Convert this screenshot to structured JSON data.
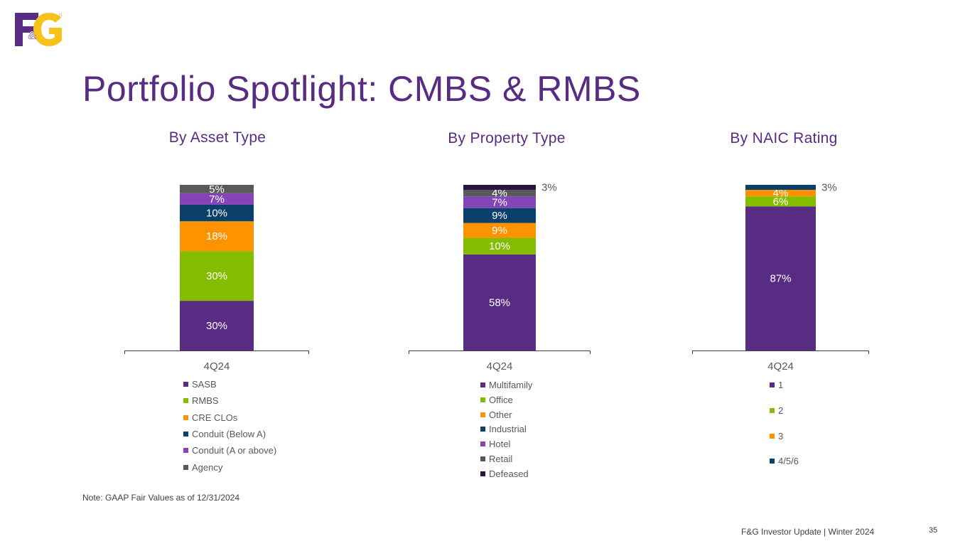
{
  "title": "Portfolio Spotlight: CMBS & RMBS",
  "logo": {
    "text": "F&G",
    "colors": {
      "purple": "#582c83",
      "yellow": "#f7c31a"
    }
  },
  "chart_data": [
    {
      "type": "bar",
      "stacked": true,
      "title": "By Asset Type",
      "categories": [
        "4Q24"
      ],
      "series": [
        {
          "name": "SASB",
          "values": [
            30
          ],
          "label": "30%",
          "color": "#582c83",
          "label_color": "#ffffff"
        },
        {
          "name": "RMBS",
          "values": [
            30
          ],
          "label": "30%",
          "color": "#84bd00",
          "label_color": "#ffffff"
        },
        {
          "name": "CRE CLOs",
          "values": [
            18
          ],
          "label": "18%",
          "color": "#ff9200",
          "label_color": "#ffffff"
        },
        {
          "name": "Conduit (Below A)",
          "values": [
            10
          ],
          "label": "10%",
          "color": "#0a4069",
          "label_color": "#ffffff"
        },
        {
          "name": "Conduit (A or above)",
          "values": [
            7
          ],
          "label": "7%",
          "color": "#8545b6",
          "label_color": "#ffffff"
        },
        {
          "name": "Agency",
          "values": [
            5
          ],
          "label": "5%",
          "color": "#595959",
          "label_color": "#ffffff"
        }
      ],
      "ylim": [
        0,
        100
      ],
      "legend": "bottom"
    },
    {
      "type": "bar",
      "stacked": true,
      "title": "By Property Type",
      "categories": [
        "4Q24"
      ],
      "series": [
        {
          "name": "Multifamily",
          "values": [
            58
          ],
          "label": "58%",
          "color": "#582c83",
          "label_color": "#ffffff"
        },
        {
          "name": "Office",
          "values": [
            10
          ],
          "label": "10%",
          "color": "#84bd00",
          "label_color": "#ffffff"
        },
        {
          "name": "Other",
          "values": [
            9
          ],
          "label": "9%",
          "color": "#ff9200",
          "label_color": "#ffffff"
        },
        {
          "name": "Industrial",
          "values": [
            9
          ],
          "label": "9%",
          "color": "#0a4069",
          "label_color": "#ffffff"
        },
        {
          "name": "Hotel",
          "values": [
            7
          ],
          "label": "7%",
          "color": "#8545b6",
          "label_color": "#ffffff"
        },
        {
          "name": "Retail",
          "values": [
            4
          ],
          "label": "4%",
          "color": "#595959",
          "label_color": "#ffffff"
        },
        {
          "name": "Defeased",
          "values": [
            3
          ],
          "label": "3%",
          "color": "#2b1440",
          "label_color": "#595959",
          "label_outside": true
        }
      ],
      "ylim": [
        0,
        100
      ],
      "legend": "bottom"
    },
    {
      "type": "bar",
      "stacked": true,
      "title": "By NAIC Rating",
      "categories": [
        "4Q24"
      ],
      "series": [
        {
          "name": "1",
          "values": [
            87
          ],
          "label": "87%",
          "color": "#582c83",
          "label_color": "#ffffff"
        },
        {
          "name": "2",
          "values": [
            6
          ],
          "label": "6%",
          "color": "#84bd00",
          "label_color": "#ffffff"
        },
        {
          "name": "3",
          "values": [
            4
          ],
          "label": "4%",
          "color": "#ff9200",
          "label_color": "#ffffff"
        },
        {
          "name": "4/5/6",
          "values": [
            3
          ],
          "label": "3%",
          "color": "#0a4069",
          "label_color": "#595959",
          "label_outside": true
        }
      ],
      "ylim": [
        0,
        100
      ],
      "legend": "bottom"
    }
  ],
  "note": "Note: GAAP Fair Values as of 12/31/2024",
  "footer": "F&G Investor Update | Winter 2024",
  "page_number": "35"
}
